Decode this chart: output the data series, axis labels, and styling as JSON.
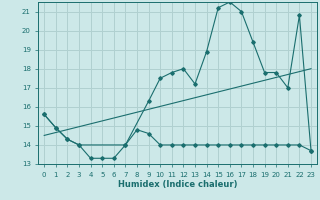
{
  "xlabel": "Humidex (Indice chaleur)",
  "bg_color": "#cce8e8",
  "grid_color": "#b0d0d0",
  "line_color": "#1a6e6e",
  "xlim": [
    -0.5,
    23.5
  ],
  "ylim": [
    13,
    21.5
  ],
  "yticks": [
    13,
    14,
    15,
    16,
    17,
    18,
    19,
    20,
    21
  ],
  "xticks": [
    0,
    1,
    2,
    3,
    4,
    5,
    6,
    7,
    8,
    9,
    10,
    11,
    12,
    13,
    14,
    15,
    16,
    17,
    18,
    19,
    20,
    21,
    22,
    23
  ],
  "series1_x": [
    0,
    1,
    2,
    3,
    4,
    5,
    6,
    7,
    8,
    9,
    10,
    11,
    12,
    13,
    14,
    15,
    16,
    17,
    18,
    19,
    20,
    21,
    22,
    23
  ],
  "series1_y": [
    15.6,
    14.9,
    14.3,
    14.0,
    13.3,
    13.3,
    13.3,
    14.0,
    14.8,
    14.6,
    14.0,
    14.0,
    14.0,
    14.0,
    14.0,
    14.0,
    14.0,
    14.0,
    14.0,
    14.0,
    14.0,
    14.0,
    14.0,
    13.7
  ],
  "series2_x": [
    0,
    1,
    2,
    3,
    7,
    9,
    10,
    11,
    12,
    13,
    14,
    15,
    16,
    17,
    18,
    19,
    20,
    21,
    22,
    23
  ],
  "series2_y": [
    15.6,
    14.9,
    14.3,
    14.0,
    14.0,
    16.3,
    17.5,
    17.8,
    18.0,
    17.2,
    18.9,
    21.2,
    21.5,
    21.0,
    19.4,
    17.8,
    17.8,
    17.0,
    20.8,
    13.7
  ],
  "trend_x": [
    0,
    23
  ],
  "trend_y": [
    14.5,
    18.0
  ]
}
